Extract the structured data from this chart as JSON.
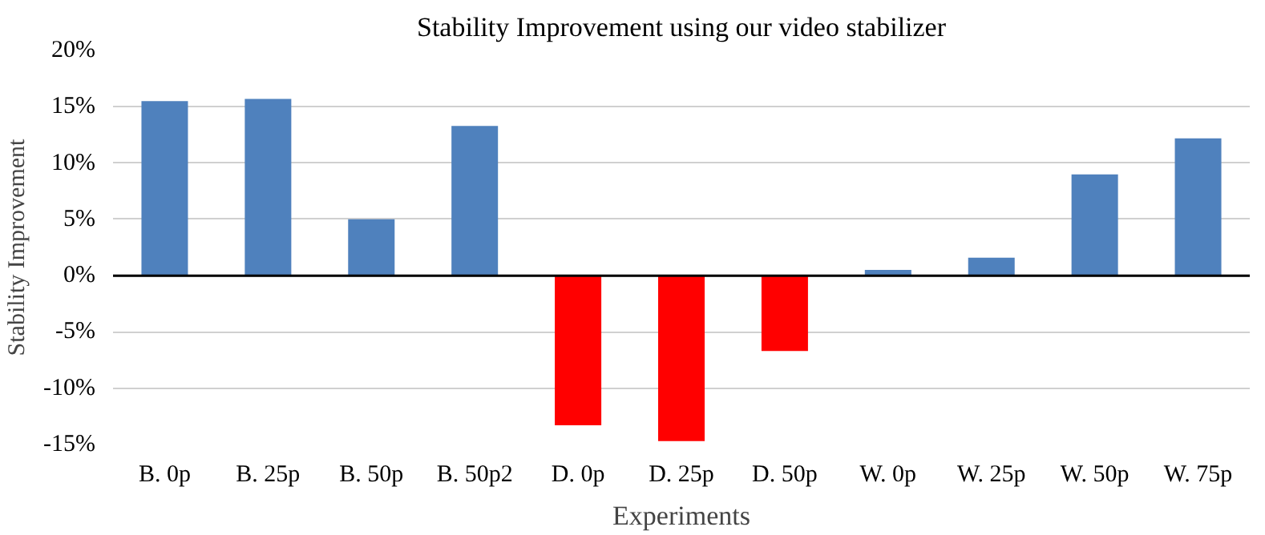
{
  "chart_data": {
    "type": "bar",
    "title": "Stability Improvement using our video stabilizer",
    "xlabel": "Experiments",
    "ylabel": "Stability Improvement",
    "categories": [
      "B. 0p",
      "B. 25p",
      "B. 50p",
      "B. 50p2",
      "D. 0p",
      "D. 25p",
      "D. 50p",
      "W. 0p",
      "W. 25p",
      "W. 50p",
      "W. 75p"
    ],
    "values": [
      15.5,
      15.7,
      5.0,
      13.3,
      -13.3,
      -14.7,
      -6.7,
      0.5,
      1.6,
      9.0,
      12.2
    ],
    "colors": [
      "#4f81bd",
      "#4f81bd",
      "#4f81bd",
      "#4f81bd",
      "#ff0000",
      "#ff0000",
      "#ff0000",
      "#4f81bd",
      "#4f81bd",
      "#4f81bd",
      "#4f81bd"
    ],
    "ylim": [
      -15,
      20
    ],
    "yticks": [
      {
        "value": -15,
        "label": "-15%"
      },
      {
        "value": -10,
        "label": "-10%"
      },
      {
        "value": -5,
        "label": "-5%"
      },
      {
        "value": 0,
        "label": "0%"
      },
      {
        "value": 5,
        "label": "5%"
      },
      {
        "value": 10,
        "label": "10%"
      },
      {
        "value": 15,
        "label": "15%"
      },
      {
        "value": 20,
        "label": "20%"
      }
    ],
    "grid": "y"
  }
}
